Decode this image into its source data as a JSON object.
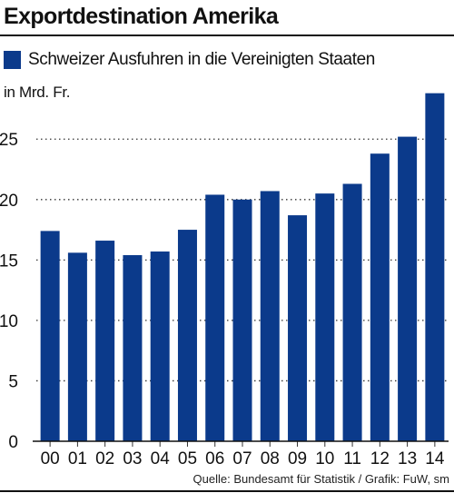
{
  "title": "Exportdestination Amerika",
  "source": "Quelle: Bundesamt für Statistik / Grafik: FuW, sm",
  "colors": {
    "bar": "#0b3a8b",
    "grid": "#333333",
    "text": "#111111"
  },
  "chart_data": {
    "type": "bar",
    "categories": [
      "00",
      "01",
      "02",
      "03",
      "04",
      "05",
      "06",
      "07",
      "08",
      "09",
      "10",
      "11",
      "12",
      "13",
      "14"
    ],
    "series": [
      {
        "name": "Schweizer Ausfuhren in die Vereinigten Staaten",
        "values": [
          17.4,
          15.6,
          16.6,
          15.4,
          15.7,
          17.5,
          20.4,
          20.0,
          20.7,
          18.7,
          20.5,
          21.3,
          23.8,
          25.2,
          28.8
        ]
      }
    ],
    "ylabel": "in Mrd. Fr.",
    "yticks": [
      0,
      5,
      10,
      15,
      20,
      25
    ],
    "ylim": [
      0,
      29
    ],
    "grid": "horizontal dotted",
    "legend": "top-left"
  }
}
